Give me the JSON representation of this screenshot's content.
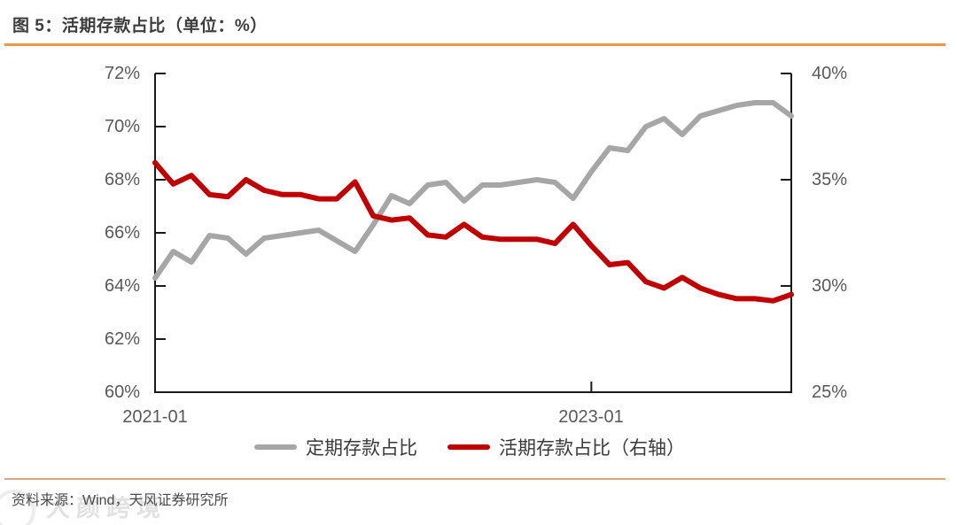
{
  "header": {
    "title": "图 5：活期存款占比（单位：%）"
  },
  "footer": {
    "source": "资料来源：Wind，天风证券研究所",
    "watermark": "大颜跨境"
  },
  "chart_data": {
    "type": "line",
    "title": "活期存款占比（单位：%）",
    "x": [
      "2021-01",
      "2021-02",
      "2021-03",
      "2021-04",
      "2021-05",
      "2021-06",
      "2021-07",
      "2021-08",
      "2021-09",
      "2021-10",
      "2021-11",
      "2021-12",
      "2022-01",
      "2022-02",
      "2022-03",
      "2022-04",
      "2022-05",
      "2022-06",
      "2022-07",
      "2022-08",
      "2022-09",
      "2022-10",
      "2022-11",
      "2022-12",
      "2023-01",
      "2023-02",
      "2023-03",
      "2023-04",
      "2023-05",
      "2023-06",
      "2023-07",
      "2023-08",
      "2023-09",
      "2023-10",
      "2023-11",
      "2023-12"
    ],
    "x_tick_labels": [
      "2021-01",
      "2023-01"
    ],
    "x_tick_indices": [
      0,
      24
    ],
    "series": [
      {
        "name": "定期存款占比",
        "axis": "left",
        "color": "#a6a6a6",
        "values": [
          64.3,
          65.3,
          64.9,
          65.9,
          65.8,
          65.2,
          65.8,
          65.9,
          66.0,
          66.1,
          65.7,
          65.3,
          66.3,
          67.4,
          67.1,
          67.8,
          67.9,
          67.2,
          67.8,
          67.8,
          67.9,
          68.0,
          67.9,
          67.3,
          68.3,
          69.2,
          69.1,
          70.0,
          70.3,
          69.7,
          70.4,
          70.6,
          70.8,
          70.9,
          70.9,
          70.4
        ]
      },
      {
        "name": "活期存款占比（右轴）",
        "axis": "right",
        "color": "#c00000",
        "values": [
          35.8,
          34.8,
          35.2,
          34.3,
          34.2,
          35.0,
          34.5,
          34.3,
          34.3,
          34.1,
          34.1,
          34.9,
          33.3,
          33.1,
          33.2,
          32.4,
          32.3,
          32.9,
          32.3,
          32.2,
          32.2,
          32.2,
          32.0,
          32.9,
          31.9,
          31.0,
          31.1,
          30.2,
          29.9,
          30.4,
          29.9,
          29.6,
          29.4,
          29.4,
          29.3,
          29.6
        ]
      }
    ],
    "left_axis": {
      "ticks": [
        "72%",
        "70%",
        "68%",
        "66%",
        "64%",
        "62%",
        "60%"
      ],
      "min": 60,
      "max": 72
    },
    "right_axis": {
      "ticks": [
        "40%",
        "35%",
        "30%",
        "25%"
      ],
      "min": 25,
      "max": 40
    },
    "legend_position": "bottom",
    "grid": false
  }
}
